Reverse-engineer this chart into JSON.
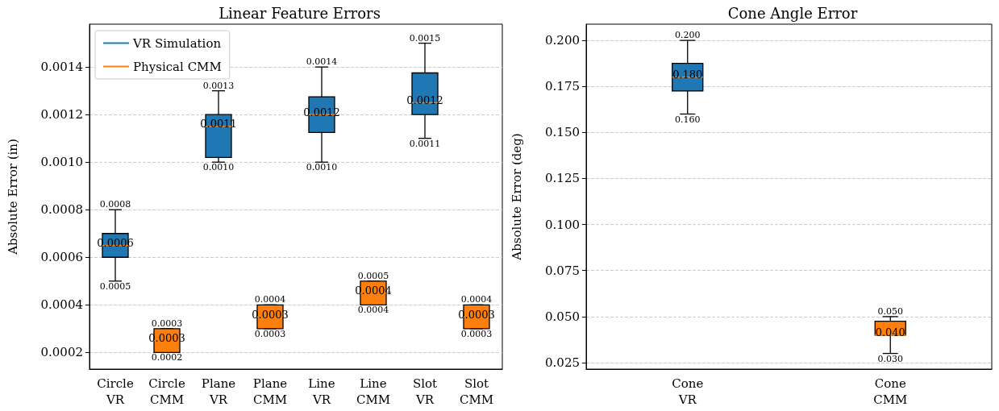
{
  "chart_data": [
    {
      "type": "box",
      "title": "Linear Feature Errors",
      "ylabel": "Absolute Error (in)",
      "categories": [
        "Circle VR",
        "Circle CMM",
        "Plane VR",
        "Plane CMM",
        "Line VR",
        "Line CMM",
        "Slot VR",
        "Slot CMM"
      ],
      "ylim": [
        0.00013,
        0.00158
      ],
      "yticks": [
        {
          "value": 0.0002,
          "label": "0.0002"
        },
        {
          "value": 0.0004,
          "label": "0.0004"
        },
        {
          "value": 0.0006,
          "label": "0.0006"
        },
        {
          "value": 0.0008,
          "label": "0.0008"
        },
        {
          "value": 0.001,
          "label": "0.0010"
        },
        {
          "value": 0.0012,
          "label": "0.0012"
        },
        {
          "value": 0.0014,
          "label": "0.0014"
        }
      ],
      "grid": "y",
      "legend": "top left",
      "series": [
        {
          "name": "VR Simulation",
          "color": "#1f77b4",
          "boxes": [
            {
              "low": 0.0005,
              "q1": 0.0006,
              "median": 0.00065,
              "q3": 0.0007,
              "high": 0.0008
            },
            null,
            {
              "low": 0.001,
              "q1": 0.00102,
              "median": 0.00115,
              "q3": 0.0012,
              "high": 0.0013
            },
            null,
            {
              "low": 0.001,
              "q1": 0.001125,
              "median": 0.0012,
              "q3": 0.001275,
              "high": 0.0014
            },
            null,
            {
              "low": 0.0011,
              "q1": 0.0012,
              "median": 0.00125,
              "q3": 0.001375,
              "high": 0.0015
            },
            null
          ]
        },
        {
          "name": "Physical CMM",
          "color": "#ff7f0e",
          "boxes": [
            null,
            {
              "low": 0.0002,
              "q1": 0.0002,
              "median": 0.00025,
              "q3": 0.0003,
              "high": 0.0003
            },
            null,
            {
              "low": 0.0003,
              "q1": 0.0003,
              "median": 0.00035,
              "q3": 0.0004,
              "high": 0.0004
            },
            null,
            {
              "low": 0.0004,
              "q1": 0.0004,
              "median": 0.00045,
              "q3": 0.0005,
              "high": 0.0005
            },
            null,
            {
              "low": 0.0003,
              "q1": 0.0003,
              "median": 0.00035,
              "q3": 0.0004,
              "high": 0.0004
            }
          ]
        }
      ],
      "annotations": [
        {
          "text": "0.0008",
          "x": "Circle VR",
          "y": 0.0008
        },
        {
          "text": "0.0006",
          "x": "Circle VR",
          "y": 0.00065
        },
        {
          "text": "0.0005",
          "x": "Circle VR",
          "y": 0.0005
        },
        {
          "text": "0.0003",
          "x": "Circle CMM",
          "y": 0.0003
        },
        {
          "text": "0.0003",
          "x": "Circle CMM",
          "y": 0.00025
        },
        {
          "text": "0.0002",
          "x": "Circle CMM",
          "y": 0.0002
        },
        {
          "text": "0.0013",
          "x": "Plane VR",
          "y": 0.0013
        },
        {
          "text": "0.0011",
          "x": "Plane VR",
          "y": 0.00115
        },
        {
          "text": "0.0010",
          "x": "Plane VR",
          "y": 0.001
        },
        {
          "text": "0.0004",
          "x": "Plane CMM",
          "y": 0.0004
        },
        {
          "text": "0.0003",
          "x": "Plane CMM",
          "y": 0.00035
        },
        {
          "text": "0.0003",
          "x": "Plane CMM",
          "y": 0.0003
        },
        {
          "text": "0.0014",
          "x": "Line VR",
          "y": 0.0014
        },
        {
          "text": "0.0012",
          "x": "Line VR",
          "y": 0.0012
        },
        {
          "text": "0.0010",
          "x": "Line VR",
          "y": 0.001
        },
        {
          "text": "0.0005",
          "x": "Line CMM",
          "y": 0.0005
        },
        {
          "text": "0.0004",
          "x": "Line CMM",
          "y": 0.00045
        },
        {
          "text": "0.0004",
          "x": "Line CMM",
          "y": 0.0004
        },
        {
          "text": "0.0015",
          "x": "Slot VR",
          "y": 0.0015
        },
        {
          "text": "0.0012",
          "x": "Slot VR",
          "y": 0.00125
        },
        {
          "text": "0.0011",
          "x": "Slot VR",
          "y": 0.0011
        },
        {
          "text": "0.0004",
          "x": "Slot CMM",
          "y": 0.0004
        },
        {
          "text": "0.0003",
          "x": "Slot CMM",
          "y": 0.00035
        },
        {
          "text": "0.0003",
          "x": "Slot CMM",
          "y": 0.0003
        }
      ]
    },
    {
      "type": "box",
      "title": "Cone Angle Error",
      "ylabel": "Absolute Error (deg)",
      "categories": [
        "Cone VR",
        "Cone CMM"
      ],
      "ylim": [
        0.0215,
        0.2088
      ],
      "yticks": [
        {
          "value": 0.025,
          "label": "0.025"
        },
        {
          "value": 0.05,
          "label": "0.050"
        },
        {
          "value": 0.075,
          "label": "0.075"
        },
        {
          "value": 0.1,
          "label": "0.100"
        },
        {
          "value": 0.125,
          "label": "0.125"
        },
        {
          "value": 0.15,
          "label": "0.150"
        },
        {
          "value": 0.175,
          "label": "0.175"
        },
        {
          "value": 0.2,
          "label": "0.200"
        }
      ],
      "grid": "y",
      "series": [
        {
          "color": "#1f77b4",
          "boxes": [
            {
              "low": 0.16,
              "q1": 0.1725,
              "median": 0.18,
              "q3": 0.1875,
              "high": 0.2
            },
            null
          ]
        },
        {
          "color": "#ff7f0e",
          "boxes": [
            null,
            {
              "low": 0.03,
              "q1": 0.04,
              "median": 0.04,
              "q3": 0.0475,
              "high": 0.05
            }
          ]
        }
      ],
      "annotations": [
        {
          "text": "0.200",
          "x": "Cone VR",
          "y": 0.2
        },
        {
          "text": "0.180",
          "x": "Cone VR",
          "y": 0.18
        },
        {
          "text": "0.160",
          "x": "Cone VR",
          "y": 0.16
        },
        {
          "text": "0.050",
          "x": "Cone CMM",
          "y": 0.05
        },
        {
          "text": "0.040",
          "x": "Cone CMM",
          "y": 0.04
        },
        {
          "text": "0.030",
          "x": "Cone CMM",
          "y": 0.03
        }
      ]
    }
  ]
}
